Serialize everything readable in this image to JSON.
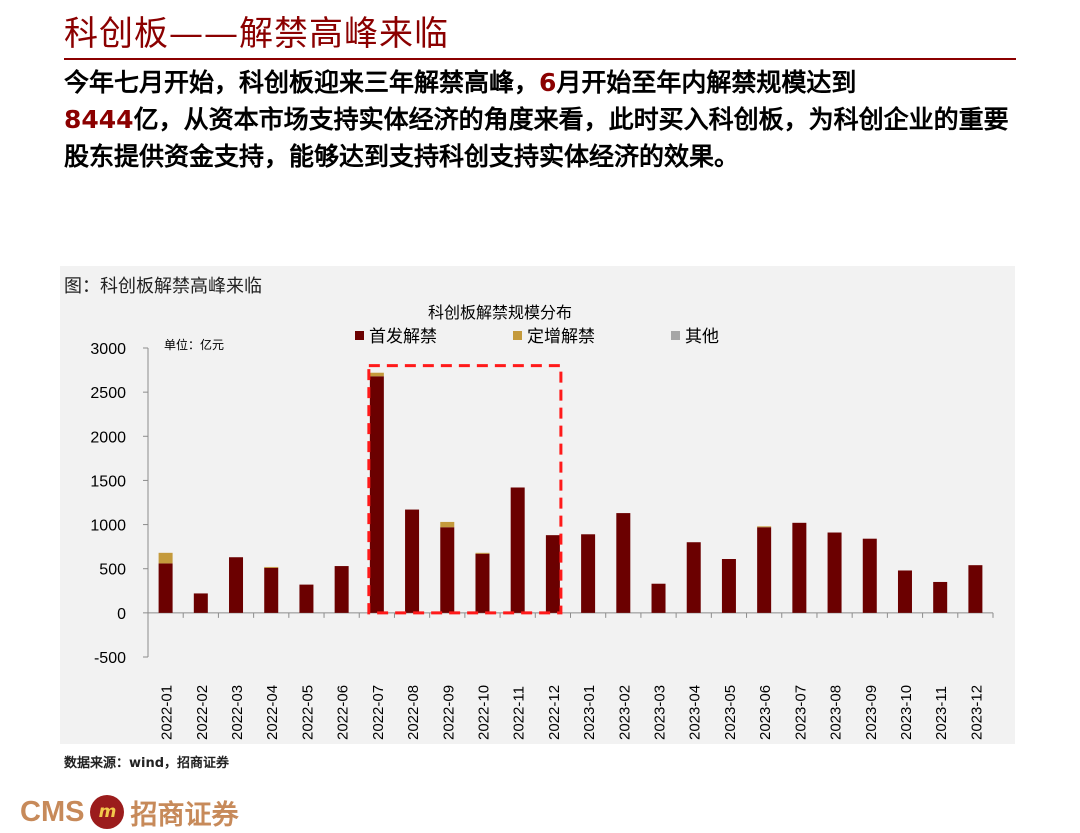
{
  "page": {
    "title": "科创板——解禁高峰来临",
    "intro_before": "今年七月开始，科创板迎来三年解禁高峰，",
    "intro_em1": "6",
    "intro_mid": "月开始至年内解禁规模达到",
    "intro_em2": "8444",
    "intro_after": "亿，从资本市场支持实体经济的角度来看，此时买入科创板，为科创企业的重要股东提供资金支持，能够达到支持科创支持实体经济的效果。",
    "figure_label": "图：科创板解禁高峰来临",
    "source": "数据来源：wind，招商证券",
    "logo_text": "CMS",
    "logo_cn": "招商证券"
  },
  "chart_data": {
    "type": "bar",
    "stacked": true,
    "title": "科创板解禁规模分布",
    "unit_label": "单位：亿元",
    "categories": [
      "2022-01",
      "2022-02",
      "2022-03",
      "2022-04",
      "2022-05",
      "2022-06",
      "2022-07",
      "2022-08",
      "2022-09",
      "2022-10",
      "2022-11",
      "2022-12",
      "2023-01",
      "2023-02",
      "2023-03",
      "2023-04",
      "2023-05",
      "2023-06",
      "2023-07",
      "2023-08",
      "2023-09",
      "2023-10",
      "2023-11",
      "2023-12"
    ],
    "series": [
      {
        "name": "首发解禁",
        "color": "#6b0000",
        "values": [
          560,
          220,
          630,
          510,
          320,
          530,
          2680,
          1170,
          970,
          670,
          1420,
          880,
          890,
          1130,
          330,
          800,
          610,
          970,
          1020,
          910,
          840,
          480,
          350,
          540
        ]
      },
      {
        "name": "定增解禁",
        "color": "#c49a3c",
        "values": [
          120,
          0,
          0,
          10,
          0,
          0,
          40,
          0,
          60,
          10,
          0,
          0,
          0,
          0,
          0,
          0,
          0,
          10,
          0,
          0,
          0,
          0,
          0,
          0
        ]
      },
      {
        "name": "其他",
        "color": "#a6a6a6",
        "values": [
          0,
          0,
          0,
          0,
          0,
          0,
          0,
          0,
          0,
          0,
          0,
          0,
          0,
          0,
          0,
          0,
          0,
          0,
          0,
          0,
          0,
          0,
          0,
          0
        ]
      }
    ],
    "ylim": [
      -500,
      3000
    ],
    "yticks": [
      "3000",
      "2500",
      "2000",
      "1500",
      "1000",
      "500",
      "0",
      "-500"
    ],
    "highlight": {
      "from": "2022-07",
      "to": "2022-12",
      "top": 2800
    },
    "grid": false,
    "legend_position": "top"
  }
}
